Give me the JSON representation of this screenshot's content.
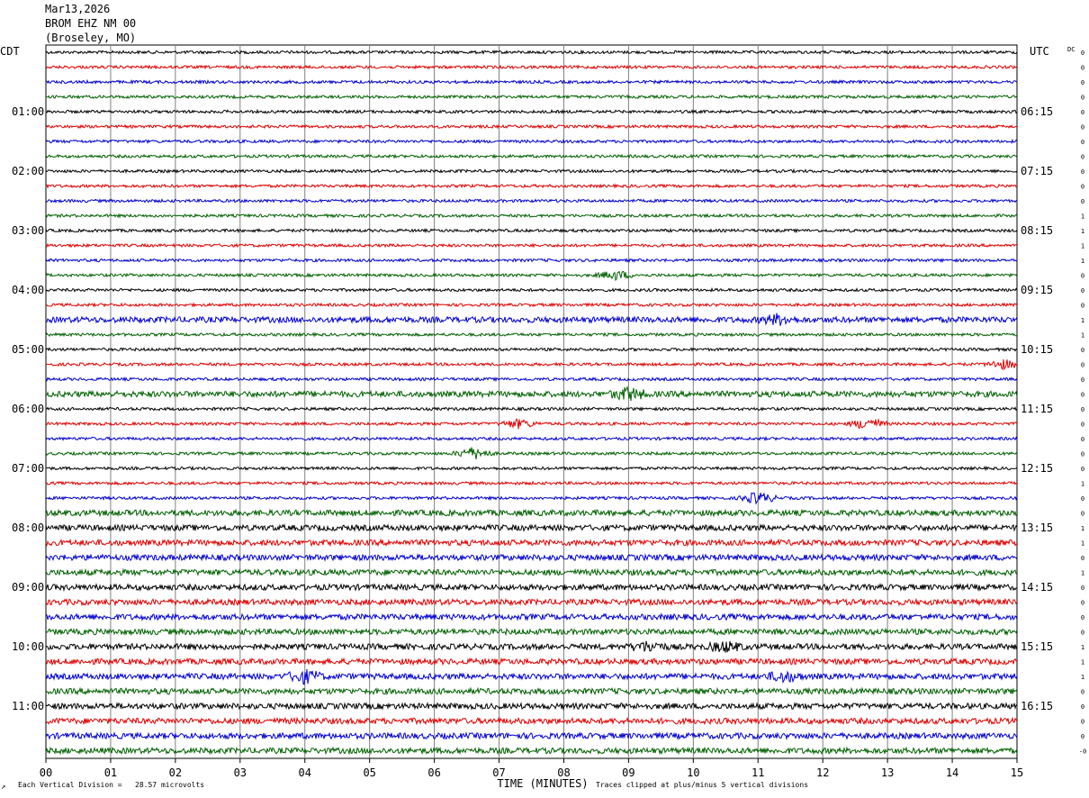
{
  "header": {
    "date": "Mar13,2026",
    "station": "BROM EHZ NM 00",
    "location": "(Broseley, MO)"
  },
  "labels": {
    "left_tz": "CDT",
    "right_tz": "UTC",
    "dc": "DC",
    "xlabel": "TIME (MINUTES)",
    "scale_note": "Each Vertical Division =   28.57 microvolts",
    "clip_note": "Traces clipped at plus/minus 5 vertical divisions",
    "corner_mark": "↗"
  },
  "colors": {
    "trace_cycle": [
      "#000000",
      "#e00000",
      "#0000d0",
      "#006000"
    ],
    "grid": "#808080"
  },
  "chart_data": {
    "type": "line",
    "title": "BROM EHZ NM 00",
    "xlabel": "TIME (MINUTES)",
    "xlim": [
      0,
      15
    ],
    "x_ticks": [
      "00",
      "01",
      "02",
      "03",
      "04",
      "05",
      "06",
      "07",
      "08",
      "09",
      "10",
      "11",
      "12",
      "13",
      "14",
      "15"
    ],
    "trace_count": 48,
    "left_hour_labels": [
      "01:00",
      "02:00",
      "03:00",
      "04:00",
      "05:00",
      "06:00",
      "07:00",
      "08:00",
      "09:00",
      "10:00",
      "11:00"
    ],
    "right_hour_labels": [
      "06:15",
      "07:15",
      "08:15",
      "09:15",
      "10:15",
      "11:15",
      "12:15",
      "13:15",
      "14:15",
      "15:15",
      "16:15"
    ],
    "dc_offsets": [
      "0",
      "0",
      "0",
      "0",
      "0",
      "0",
      "0",
      "0",
      "0",
      "0",
      "0",
      "1",
      "1",
      "1",
      "1",
      "0",
      "0",
      "0",
      "1",
      "1",
      "0",
      "0",
      "0",
      "0",
      "0",
      "0",
      "0",
      "0",
      "0",
      "1",
      "0",
      "0",
      "1",
      "1",
      "0",
      "1",
      "0",
      "0",
      "0",
      "0",
      "1",
      "1",
      "1",
      "0",
      "0",
      "0",
      "0",
      "-0"
    ],
    "amplitude_profile": [
      1,
      1,
      1,
      1,
      1,
      1,
      1,
      1,
      1,
      1,
      1,
      1,
      1,
      1,
      1,
      1,
      1,
      1,
      2,
      1,
      1,
      1,
      1,
      2,
      1,
      1,
      1,
      1,
      1,
      1,
      1,
      2,
      2,
      2,
      2,
      2,
      2,
      2,
      2,
      2,
      2,
      2,
      2,
      2,
      2,
      2,
      2,
      2
    ],
    "events": [
      {
        "trace": 15,
        "minute": 8.8,
        "amplitude": 3
      },
      {
        "trace": 18,
        "minute": 11.3,
        "amplitude": 3
      },
      {
        "trace": 21,
        "minute": 14.8,
        "amplitude": 3
      },
      {
        "trace": 23,
        "minute": 9.0,
        "amplitude": 4
      },
      {
        "trace": 25,
        "minute": 7.3,
        "amplitude": 3
      },
      {
        "trace": 25,
        "minute": 12.7,
        "amplitude": 4
      },
      {
        "trace": 27,
        "minute": 6.6,
        "amplitude": 4
      },
      {
        "trace": 30,
        "minute": 11.0,
        "amplitude": 4
      },
      {
        "trace": 40,
        "minute": 9.3,
        "amplitude": 3
      },
      {
        "trace": 40,
        "minute": 10.5,
        "amplitude": 3
      },
      {
        "trace": 42,
        "minute": 4.0,
        "amplitude": 4
      },
      {
        "trace": 42,
        "minute": 11.4,
        "amplitude": 3
      }
    ]
  }
}
